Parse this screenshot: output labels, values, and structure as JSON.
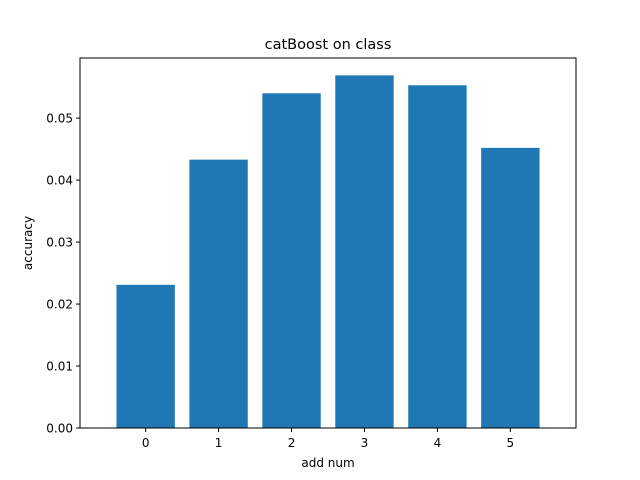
{
  "chart_data": {
    "type": "bar",
    "title": "catBoost on class",
    "xlabel": "add num",
    "ylabel": "accuracy",
    "categories": [
      "0",
      "1",
      "2",
      "3",
      "4",
      "5"
    ],
    "values": [
      0.0231,
      0.0433,
      0.054,
      0.0569,
      0.0553,
      0.0452
    ],
    "ylim": [
      0,
      0.0597
    ],
    "yticks": [
      0.0,
      0.01,
      0.02,
      0.03,
      0.04,
      0.05
    ],
    "ytick_labels": [
      "0.00",
      "0.01",
      "0.02",
      "0.03",
      "0.04",
      "0.05"
    ],
    "bar_color": "#1f77b4",
    "grid": false,
    "legend": "none"
  }
}
